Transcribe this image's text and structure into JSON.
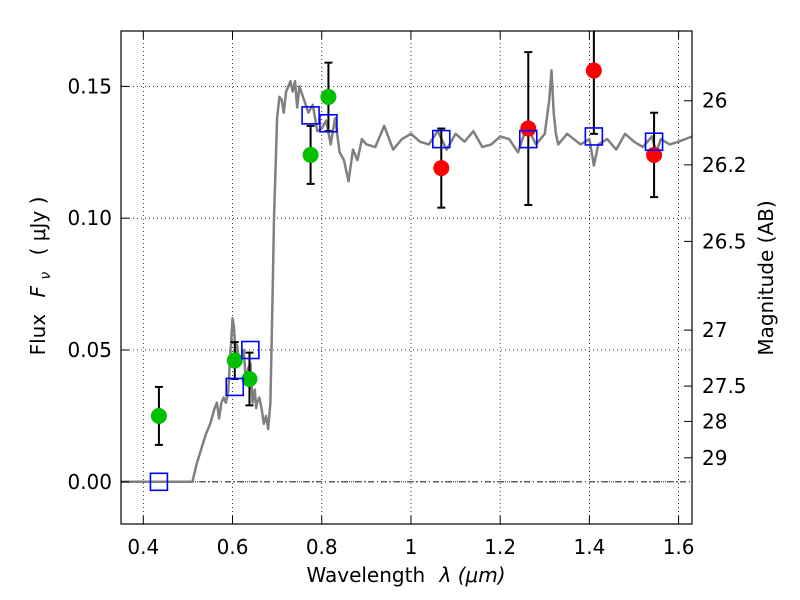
{
  "chart_data": {
    "type": "scatter",
    "title": "",
    "xlabel_text": "Wavelength",
    "xlabel_symbol": "λ (μm)",
    "ylabel_text": "Flux",
    "ylabel_symbol": "F",
    "ylabel_subscript": "ν",
    "ylabel_unit": "( μJy )",
    "y2label": "Magnitude (AB)",
    "xlim": [
      0.35,
      1.63
    ],
    "ylim": [
      -0.016,
      0.171
    ],
    "grid": true,
    "x_ticks": [
      {
        "value": 0.4,
        "label": "0.4"
      },
      {
        "value": 0.6,
        "label": "0.6"
      },
      {
        "value": 0.8,
        "label": "0.8"
      },
      {
        "value": 1.0,
        "label": "1"
      },
      {
        "value": 1.2,
        "label": "1.2"
      },
      {
        "value": 1.4,
        "label": "1.4"
      },
      {
        "value": 1.6,
        "label": "1.6"
      }
    ],
    "y_ticks": [
      {
        "value": 0.0,
        "label": "0.00"
      },
      {
        "value": 0.05,
        "label": "0.05"
      },
      {
        "value": 0.1,
        "label": "0.10"
      },
      {
        "value": 0.15,
        "label": "0.15"
      }
    ],
    "mag_ticks": [
      {
        "mag": 26,
        "label": "26"
      },
      {
        "mag": 26.2,
        "label": "26.2"
      },
      {
        "mag": 26.5,
        "label": "26.5"
      },
      {
        "mag": 27,
        "label": "27"
      },
      {
        "mag": 27.5,
        "label": "27.5"
      },
      {
        "mag": 28,
        "label": "28"
      },
      {
        "mag": 29,
        "label": "29"
      }
    ],
    "series": [
      {
        "name": "model spectrum",
        "kind": "line",
        "color": "#808080",
        "x": [
          0.35,
          0.51,
          0.52,
          0.54,
          0.55,
          0.56,
          0.565,
          0.57,
          0.575,
          0.58,
          0.585,
          0.59,
          0.6,
          0.603,
          0.607,
          0.61,
          0.615,
          0.62,
          0.625,
          0.63,
          0.635,
          0.64,
          0.645,
          0.65,
          0.653,
          0.655,
          0.66,
          0.665,
          0.67,
          0.675,
          0.68,
          0.685,
          0.69,
          0.693,
          0.7,
          0.705,
          0.71,
          0.715,
          0.72,
          0.725,
          0.73,
          0.735,
          0.74,
          0.745,
          0.75,
          0.76,
          0.77,
          0.78,
          0.79,
          0.8,
          0.81,
          0.82,
          0.83,
          0.84,
          0.85,
          0.86,
          0.87,
          0.88,
          0.89,
          0.9,
          0.92,
          0.94,
          0.96,
          0.98,
          1.0,
          1.02,
          1.04,
          1.06,
          1.08,
          1.1,
          1.12,
          1.14,
          1.16,
          1.18,
          1.2,
          1.22,
          1.24,
          1.26,
          1.28,
          1.3,
          1.31,
          1.315,
          1.32,
          1.325,
          1.33,
          1.35,
          1.38,
          1.4,
          1.41,
          1.42,
          1.44,
          1.46,
          1.48,
          1.5,
          1.52,
          1.54,
          1.55,
          1.56,
          1.58,
          1.6,
          1.63
        ],
        "y": [
          0.0,
          0.0,
          0.007,
          0.018,
          0.022,
          0.028,
          0.03,
          0.024,
          0.03,
          0.032,
          0.03,
          0.034,
          0.062,
          0.059,
          0.048,
          0.052,
          0.045,
          0.047,
          0.05,
          0.038,
          0.043,
          0.045,
          0.03,
          0.035,
          0.028,
          0.03,
          0.032,
          0.028,
          0.022,
          0.025,
          0.02,
          0.03,
          0.073,
          0.1,
          0.138,
          0.146,
          0.145,
          0.14,
          0.148,
          0.15,
          0.152,
          0.148,
          0.152,
          0.142,
          0.15,
          0.145,
          0.14,
          0.143,
          0.133,
          0.134,
          0.137,
          0.128,
          0.138,
          0.125,
          0.122,
          0.114,
          0.126,
          0.122,
          0.13,
          0.128,
          0.127,
          0.135,
          0.126,
          0.13,
          0.132,
          0.129,
          0.128,
          0.133,
          0.126,
          0.132,
          0.129,
          0.133,
          0.127,
          0.128,
          0.131,
          0.13,
          0.125,
          0.135,
          0.128,
          0.132,
          0.145,
          0.156,
          0.14,
          0.132,
          0.128,
          0.132,
          0.128,
          0.13,
          0.12,
          0.128,
          0.13,
          0.126,
          0.132,
          0.129,
          0.127,
          0.131,
          0.125,
          0.13,
          0.128,
          0.129,
          0.131
        ]
      },
      {
        "name": "green points",
        "kind": "marker",
        "marker": "circle",
        "color": "#00c000",
        "x": [
          0.435,
          0.605,
          0.638,
          0.775,
          0.815
        ],
        "y": [
          0.025,
          0.046,
          0.039,
          0.124,
          0.146
        ],
        "err": [
          0.011,
          0.007,
          0.01,
          0.011,
          0.013
        ]
      },
      {
        "name": "red points",
        "kind": "marker",
        "marker": "circle",
        "color": "#ff0000",
        "x": [
          1.068,
          1.263,
          1.41,
          1.545
        ],
        "y": [
          0.119,
          0.134,
          0.156,
          0.124
        ],
        "err": [
          0.015,
          0.029,
          0.024,
          0.016
        ]
      },
      {
        "name": "blue squares",
        "kind": "marker",
        "marker": "square-open",
        "color": "#0000ff",
        "x": [
          0.435,
          0.605,
          0.64,
          0.775,
          0.815,
          1.068,
          1.263,
          1.41,
          1.545
        ],
        "y": [
          0.0,
          0.036,
          0.05,
          0.139,
          0.136,
          0.13,
          0.13,
          0.131,
          0.129
        ]
      }
    ]
  }
}
